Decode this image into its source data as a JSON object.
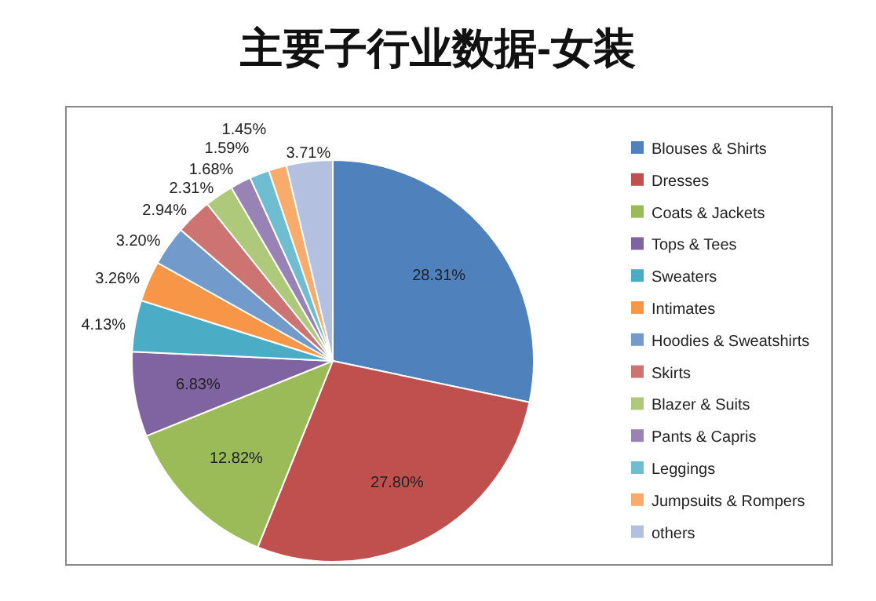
{
  "chart_data": {
    "type": "pie",
    "title": "主要子行业数据-女装",
    "categories": [
      "Blouses & Shirts",
      "Dresses",
      "Coats & Jackets",
      "Tops & Tees",
      "Sweaters",
      "Intimates",
      "Hoodies & Sweatshirts",
      "Skirts",
      "Blazer & Suits",
      "Pants & Capris",
      "Leggings",
      "Jumpsuits & Rompers",
      "others"
    ],
    "values": [
      28.31,
      27.8,
      12.82,
      6.83,
      4.13,
      3.26,
      3.2,
      2.94,
      2.31,
      1.68,
      1.59,
      1.45,
      3.71
    ],
    "value_labels": [
      "28.31%",
      "27.80%",
      "12.82%",
      "6.83%",
      "4.13%",
      "3.26%",
      "3.20%",
      "2.94%",
      "2.31%",
      "1.68%",
      "1.59%",
      "1.45%",
      "3.71%"
    ],
    "colors": [
      "#4f81bd",
      "#c0504d",
      "#9bbb59",
      "#8064a2",
      "#4bacc6",
      "#f79646",
      "#729aca",
      "#cd7371",
      "#afc97a",
      "#9983b5",
      "#6fbdd1",
      "#f9ab6b",
      "#b3c0e0"
    ],
    "legend": "right"
  }
}
